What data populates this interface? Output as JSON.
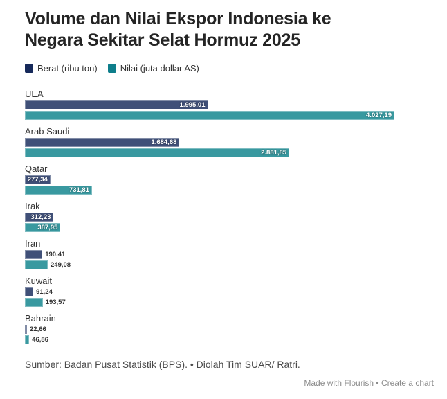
{
  "title": "Volume dan Nilai Ekspor Indonesia ke Negara Sekitar Selat Hormuz 2025",
  "legend": [
    {
      "label": "Berat (ribu ton)",
      "color": "#16295a"
    },
    {
      "label": "Nilai (juta dollar AS)",
      "color": "#0e7e8b"
    }
  ],
  "chart_data": {
    "type": "bar",
    "orientation": "horizontal",
    "title": "Volume dan Nilai Ekspor Indonesia ke Negara Sekitar Selat Hormuz 2025",
    "categories": [
      "UEA",
      "Arab Saudi",
      "Qatar",
      "Irak",
      "Iran",
      "Kuwait",
      "Bahrain"
    ],
    "series": [
      {
        "name": "Berat (ribu ton)",
        "legend_color": "#16295a",
        "bar_color": "#405078",
        "values": [
          1995.01,
          1684.68,
          277.34,
          312.23,
          190.41,
          91.24,
          22.66
        ],
        "labels": [
          "1.995,01",
          "1.684,68",
          "277,34",
          "312,23",
          "190,41",
          "91,24",
          "22,66"
        ]
      },
      {
        "name": "Nilai (juta dollar AS)",
        "legend_color": "#0e7e8b",
        "bar_color": "#3999a0",
        "values": [
          4027.19,
          2881.85,
          731.81,
          387.95,
          249.08,
          193.57,
          46.86
        ],
        "labels": [
          "4.027,19",
          "2.881,85",
          "731,81",
          "387,95",
          "249,08",
          "193,57",
          "46,86"
        ]
      }
    ],
    "xlim": [
      0,
      4027.19
    ],
    "grid": false,
    "legend_position": "top",
    "value_label_style": "inside bar end when it fits, otherwise outside right, Indonesian number format"
  },
  "footer": {
    "source": "Sumber: Badan Pusat Statistik (BPS). • Diolah Tim SUAR/ Ratri."
  },
  "credit": {
    "made_with": "Made with Flourish",
    "separator": " • ",
    "create": "Create a chart"
  }
}
